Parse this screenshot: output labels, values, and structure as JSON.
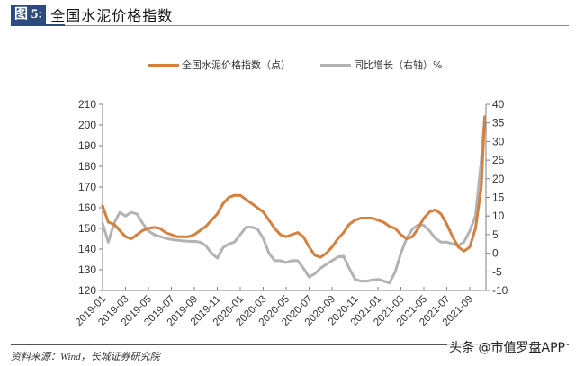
{
  "header": {
    "figure_tag": "图 5:",
    "title": "全国水泥价格指数",
    "tag_color": "#2c4a7c"
  },
  "legend": {
    "items": [
      {
        "label": "全国水泥价格指数（点）",
        "color": "#d4813f"
      },
      {
        "label": "同比增长（右轴）%",
        "color": "#b3b3b3"
      }
    ]
  },
  "footer": {
    "source": "资料来源：Wind，长城证券研究院",
    "watermark": "头条 @市值罗盘APP"
  },
  "chart_data": {
    "type": "line",
    "title": "全国水泥价格指数",
    "xlabel": "",
    "ylabel": "全国水泥价格指数（点）",
    "y2label": "同比增长（右轴）%",
    "ylim": [
      120,
      210
    ],
    "y2lim": [
      -10,
      40
    ],
    "yticks": [
      120,
      130,
      140,
      150,
      160,
      170,
      180,
      190,
      200,
      210
    ],
    "y2ticks": [
      -10,
      -5,
      0,
      5,
      10,
      15,
      20,
      25,
      30,
      35,
      40
    ],
    "xtick_labels": [
      "2019-01",
      "2019-03",
      "2019-05",
      "2019-07",
      "2019-09",
      "2019-11",
      "2020-01",
      "2020-03",
      "2020-05",
      "2020-07",
      "2020-09",
      "2020-11",
      "2021-01",
      "2021-03",
      "2021-05",
      "2021-07",
      "2021-09"
    ],
    "legend_position": "top",
    "grid": false,
    "x": [
      0,
      0.5,
      1,
      1.5,
      2,
      2.5,
      3,
      3.5,
      4,
      4.5,
      5,
      5.5,
      6,
      6.5,
      7,
      7.5,
      8,
      8.5,
      9,
      9.5,
      10,
      10.5,
      11,
      11.5,
      12,
      12.5,
      13,
      13.5,
      14,
      14.5,
      15,
      15.5,
      16,
      16.5,
      17,
      17.5,
      18,
      18.5,
      19,
      19.5,
      20,
      20.5,
      21,
      21.5,
      22,
      22.5,
      23,
      23.5,
      24,
      24.5,
      25,
      25.5,
      26,
      26.5,
      27,
      27.5,
      28,
      28.5,
      29,
      29.5,
      30,
      30.5,
      31,
      31.5,
      32,
      32.5,
      33,
      33.3
    ],
    "series": [
      {
        "name": "全国水泥价格指数（点）",
        "axis": "left",
        "color": "#d4813f",
        "values": [
          161,
          153,
          152,
          149,
          146,
          145,
          147,
          149,
          150,
          150.5,
          150,
          148,
          147,
          146,
          146,
          146,
          147,
          149,
          151,
          154,
          157,
          162,
          165,
          166,
          166,
          164,
          162,
          160,
          158,
          154,
          150,
          147,
          146,
          147,
          148,
          146,
          141,
          137,
          136,
          138,
          141,
          145,
          148,
          152,
          154,
          155,
          155,
          155,
          154,
          153,
          151,
          150,
          147,
          145,
          146,
          150,
          155,
          158,
          159,
          157,
          152,
          146,
          141,
          139,
          141,
          150,
          170,
          204
        ]
      },
      {
        "name": "同比增长（右轴）%",
        "axis": "right",
        "color": "#b3b3b3",
        "values": [
          8,
          3,
          8,
          11,
          10,
          11,
          10.5,
          8,
          6,
          5,
          4.5,
          4,
          3.7,
          3.5,
          3.3,
          3.2,
          3.2,
          3,
          2,
          0,
          -1.3,
          1.5,
          2.5,
          3,
          5,
          7,
          7,
          6.5,
          4,
          0,
          -2,
          -2,
          -2.5,
          -2,
          -2,
          -4,
          -6.4,
          -5.5,
          -4,
          -3,
          -2,
          -1,
          -0.8,
          -4,
          -7,
          -7.5,
          -7.5,
          -7.2,
          -7,
          -7.5,
          -8,
          -5,
          0,
          4,
          6.5,
          7.6,
          7.5,
          6,
          4,
          3,
          3,
          2.5,
          2,
          3,
          6,
          10,
          25,
          36.6
        ]
      }
    ]
  }
}
